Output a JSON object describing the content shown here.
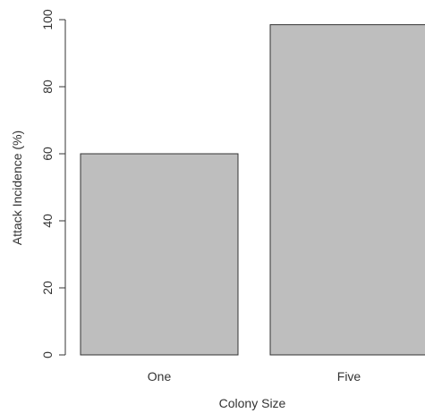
{
  "chart_data": {
    "type": "bar",
    "categories": [
      "One",
      "Five"
    ],
    "values": [
      60,
      98.5
    ],
    "title": "",
    "xlabel": "Colony Size",
    "ylabel": "Attack Incidence (%)",
    "ylim": [
      0,
      100
    ],
    "yticks": [
      "0",
      "20",
      "40",
      "60",
      "80",
      "100"
    ],
    "grid": false,
    "legend": "none",
    "colors": {
      "bar_fill": "#bebebe",
      "bar_stroke": "#333333",
      "axis": "#333333",
      "text": "#333333"
    }
  }
}
